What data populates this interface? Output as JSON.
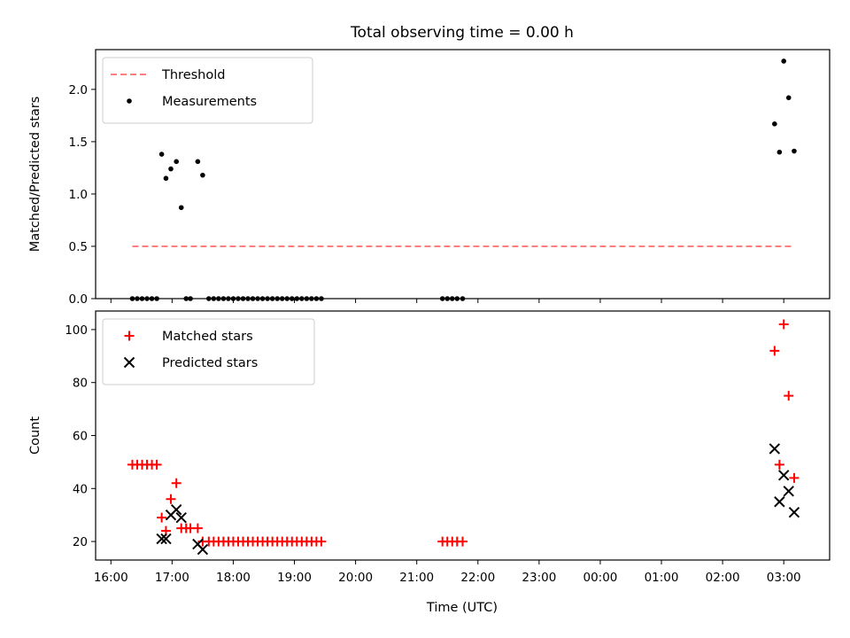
{
  "chart_data": {
    "title": "Total observing time = 0.00 h",
    "xlabel": "Time (UTC)",
    "x_ticks": [
      "16:00",
      "17:00",
      "18:00",
      "19:00",
      "20:00",
      "21:00",
      "22:00",
      "23:00",
      "00:00",
      "01:00",
      "02:00",
      "03:00"
    ],
    "xlim_hours": [
      15.75,
      27.75
    ],
    "panels": [
      {
        "type": "scatter",
        "ylabel": "Matched/Predicted stars",
        "ylim": [
          0,
          2.38
        ],
        "y_ticks": [
          "0.0",
          "0.5",
          "1.0",
          "1.5",
          "2.0"
        ],
        "y_tick_values": [
          0,
          0.5,
          1.0,
          1.5,
          2.0
        ],
        "legend_position": "upper-left",
        "threshold": {
          "name": "Threshold",
          "value": 0.5,
          "x_range_hours": [
            16.35,
            27.17
          ],
          "color": "#ff7f7f"
        },
        "series": [
          {
            "name": "Measurements",
            "marker": "dot",
            "color": "#000000",
            "points": [
              [
                16.35,
                0
              ],
              [
                16.43,
                0
              ],
              [
                16.51,
                0
              ],
              [
                16.59,
                0
              ],
              [
                16.67,
                0
              ],
              [
                16.75,
                0
              ],
              [
                16.83,
                1.38
              ],
              [
                16.9,
                1.15
              ],
              [
                16.98,
                1.24
              ],
              [
                17.07,
                1.31
              ],
              [
                17.15,
                0.87
              ],
              [
                17.23,
                0
              ],
              [
                17.3,
                0
              ],
              [
                17.42,
                1.31
              ],
              [
                17.5,
                1.18
              ],
              [
                17.6,
                0
              ],
              [
                17.68,
                0
              ],
              [
                17.76,
                0
              ],
              [
                17.84,
                0
              ],
              [
                17.92,
                0
              ],
              [
                18.0,
                0
              ],
              [
                18.08,
                0
              ],
              [
                18.16,
                0
              ],
              [
                18.24,
                0
              ],
              [
                18.32,
                0
              ],
              [
                18.4,
                0
              ],
              [
                18.48,
                0
              ],
              [
                18.56,
                0
              ],
              [
                18.64,
                0
              ],
              [
                18.72,
                0
              ],
              [
                18.8,
                0
              ],
              [
                18.88,
                0
              ],
              [
                18.96,
                0
              ],
              [
                19.04,
                0
              ],
              [
                19.12,
                0
              ],
              [
                19.2,
                0
              ],
              [
                19.28,
                0
              ],
              [
                19.36,
                0
              ],
              [
                19.44,
                0
              ],
              [
                21.42,
                0
              ],
              [
                21.5,
                0
              ],
              [
                21.58,
                0
              ],
              [
                21.66,
                0
              ],
              [
                21.75,
                0
              ],
              [
                26.85,
                1.67
              ],
              [
                26.93,
                1.4
              ],
              [
                27.0,
                2.27
              ],
              [
                27.08,
                1.92
              ],
              [
                27.17,
                1.41
              ]
            ]
          }
        ]
      },
      {
        "type": "scatter",
        "ylabel": "Count",
        "ylim": [
          13,
          107
        ],
        "y_ticks": [
          "20",
          "40",
          "60",
          "80",
          "100"
        ],
        "y_tick_values": [
          20,
          40,
          60,
          80,
          100
        ],
        "legend_position": "upper-left",
        "series": [
          {
            "name": "Matched stars",
            "marker": "plus",
            "color": "#ff0000",
            "points": [
              [
                16.35,
                49
              ],
              [
                16.43,
                49
              ],
              [
                16.51,
                49
              ],
              [
                16.59,
                49
              ],
              [
                16.67,
                49
              ],
              [
                16.75,
                49
              ],
              [
                16.83,
                29
              ],
              [
                16.9,
                24
              ],
              [
                16.98,
                36
              ],
              [
                17.07,
                42
              ],
              [
                17.15,
                25
              ],
              [
                17.23,
                25
              ],
              [
                17.3,
                25
              ],
              [
                17.42,
                25
              ],
              [
                17.5,
                20
              ],
              [
                17.6,
                20
              ],
              [
                17.68,
                20
              ],
              [
                17.76,
                20
              ],
              [
                17.84,
                20
              ],
              [
                17.92,
                20
              ],
              [
                18.0,
                20
              ],
              [
                18.08,
                20
              ],
              [
                18.16,
                20
              ],
              [
                18.24,
                20
              ],
              [
                18.32,
                20
              ],
              [
                18.4,
                20
              ],
              [
                18.48,
                20
              ],
              [
                18.56,
                20
              ],
              [
                18.64,
                20
              ],
              [
                18.72,
                20
              ],
              [
                18.8,
                20
              ],
              [
                18.88,
                20
              ],
              [
                18.96,
                20
              ],
              [
                19.04,
                20
              ],
              [
                19.12,
                20
              ],
              [
                19.2,
                20
              ],
              [
                19.28,
                20
              ],
              [
                19.36,
                20
              ],
              [
                19.44,
                20
              ],
              [
                21.42,
                20
              ],
              [
                21.5,
                20
              ],
              [
                21.58,
                20
              ],
              [
                21.66,
                20
              ],
              [
                21.75,
                20
              ],
              [
                26.85,
                92
              ],
              [
                26.93,
                49
              ],
              [
                27.0,
                102
              ],
              [
                27.08,
                75
              ],
              [
                27.17,
                44
              ]
            ]
          },
          {
            "name": "Predicted stars",
            "marker": "x",
            "color": "#000000",
            "points": [
              [
                16.83,
                21
              ],
              [
                16.9,
                21
              ],
              [
                16.98,
                30
              ],
              [
                17.07,
                32
              ],
              [
                17.15,
                29
              ],
              [
                17.42,
                19
              ],
              [
                17.5,
                17
              ],
              [
                26.85,
                55
              ],
              [
                26.93,
                35
              ],
              [
                27.0,
                45
              ],
              [
                27.08,
                39
              ],
              [
                27.17,
                31
              ]
            ]
          }
        ]
      }
    ]
  }
}
